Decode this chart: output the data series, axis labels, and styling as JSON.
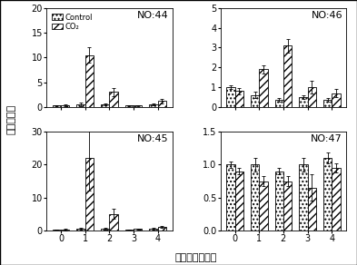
{
  "subplots": [
    {
      "label": "NO:44",
      "ylim": [
        0,
        20
      ],
      "yticks": [
        0,
        5,
        10,
        15,
        20
      ],
      "control": [
        0.3,
        0.5,
        0.5,
        0.3,
        0.5
      ],
      "co2": [
        0.3,
        10.5,
        3.0,
        0.3,
        1.2
      ],
      "control_err": [
        0.1,
        0.3,
        0.2,
        0.1,
        0.2
      ],
      "co2_err": [
        0.2,
        1.5,
        0.8,
        0.1,
        0.5
      ],
      "show_legend": true,
      "show_xticklabels": false
    },
    {
      "label": "NO:46",
      "ylim": [
        0,
        5
      ],
      "yticks": [
        0,
        1,
        2,
        3,
        4,
        5
      ],
      "control": [
        1.0,
        0.6,
        0.35,
        0.5,
        0.35
      ],
      "co2": [
        0.8,
        1.9,
        3.1,
        1.0,
        0.7
      ],
      "control_err": [
        0.1,
        0.15,
        0.1,
        0.1,
        0.1
      ],
      "co2_err": [
        0.15,
        0.2,
        0.35,
        0.3,
        0.2
      ],
      "show_legend": false,
      "show_xticklabels": false
    },
    {
      "label": "NO:45",
      "ylim": [
        0,
        30
      ],
      "yticks": [
        0,
        10,
        20,
        30
      ],
      "control": [
        0.3,
        0.5,
        0.5,
        0.3,
        0.5
      ],
      "co2": [
        0.3,
        22.0,
        5.0,
        0.5,
        1.0
      ],
      "control_err": [
        0.1,
        0.2,
        0.2,
        0.1,
        0.2
      ],
      "co2_err": [
        0.2,
        10.0,
        1.5,
        0.1,
        0.3
      ],
      "show_legend": false,
      "show_xticklabels": true
    },
    {
      "label": "NO:47",
      "ylim": [
        0.0,
        1.5
      ],
      "yticks": [
        0.0,
        0.5,
        1.0,
        1.5
      ],
      "control": [
        1.0,
        1.0,
        0.9,
        1.0,
        1.1
      ],
      "co2": [
        0.9,
        0.75,
        0.75,
        0.65,
        0.95
      ],
      "control_err": [
        0.05,
        0.1,
        0.05,
        0.1,
        0.08
      ],
      "co2_err": [
        0.05,
        0.08,
        0.08,
        0.2,
        0.07
      ],
      "show_legend": false,
      "show_xticklabels": true
    }
  ],
  "x_days": [
    0,
    1,
    2,
    3,
    4
  ],
  "bar_width": 0.35,
  "xlabel": "储藏时间（天）",
  "ylabel": "相对表达量",
  "legend_control": "Control",
  "legend_co2": "CO₂",
  "background_color": "#ffffff",
  "title_fontsize": 8,
  "label_fontsize": 8,
  "tick_fontsize": 7
}
